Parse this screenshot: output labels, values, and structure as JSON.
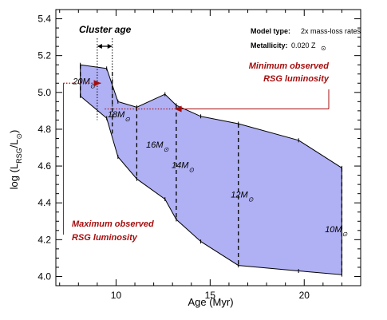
{
  "chart_data": {
    "type": "area",
    "xlabel_parts": [
      "Age (Myr)"
    ],
    "ylabel_parts": [
      "log (L",
      "RSG",
      "/L",
      "⊙",
      ")"
    ],
    "xlim": [
      6.8,
      23.0
    ],
    "ylim": [
      3.95,
      5.45
    ],
    "xticks": [
      10,
      15,
      20
    ],
    "yticks": [
      4.0,
      4.2,
      4.4,
      4.6,
      4.8,
      5.0,
      5.2,
      5.4
    ],
    "ytick_labels": [
      "4.0",
      "4.2",
      "4.4",
      "4.6",
      "4.8",
      "5.0",
      "5.2",
      "5.4"
    ],
    "fill_color": "#b0b0f5",
    "stroke_color": "#000000",
    "annotation_color": "#a50d0d",
    "upper_boundary": [
      {
        "x": 8.1,
        "y": 5.15
      },
      {
        "x": 9.5,
        "y": 5.13
      },
      {
        "x": 10.1,
        "y": 4.95
      },
      {
        "x": 11.1,
        "y": 4.92
      },
      {
        "x": 12.6,
        "y": 4.99
      },
      {
        "x": 13.2,
        "y": 4.93
      },
      {
        "x": 14.5,
        "y": 4.87
      },
      {
        "x": 16.5,
        "y": 4.83
      },
      {
        "x": 19.7,
        "y": 4.74
      },
      {
        "x": 22.0,
        "y": 4.59
      }
    ],
    "lower_boundary": [
      {
        "x": 22.0,
        "y": 4.01
      },
      {
        "x": 19.7,
        "y": 4.03
      },
      {
        "x": 16.5,
        "y": 4.06
      },
      {
        "x": 14.5,
        "y": 4.19
      },
      {
        "x": 13.2,
        "y": 4.31
      },
      {
        "x": 12.6,
        "y": 4.42
      },
      {
        "x": 11.1,
        "y": 4.53
      },
      {
        "x": 10.1,
        "y": 4.65
      },
      {
        "x": 9.5,
        "y": 4.86
      },
      {
        "x": 8.1,
        "y": 4.98
      }
    ],
    "mass_tracks": [
      {
        "label": "20M",
        "x": 8.1,
        "y_low": 4.98,
        "y_high": 5.15,
        "label_x": 7.7,
        "label_y": 5.045
      },
      {
        "label": "18M",
        "x": 9.8,
        "y_low": 4.77,
        "y_high": 5.11,
        "label_x": 9.55,
        "label_y": 4.865
      },
      {
        "label": "16M",
        "x": 11.1,
        "y_low": 4.53,
        "y_high": 4.92,
        "label_x": 11.6,
        "label_y": 4.7
      },
      {
        "label": "14M",
        "x": 13.2,
        "y_low": 4.31,
        "y_high": 4.93,
        "label_x": 12.95,
        "label_y": 4.59
      },
      {
        "label": "12M",
        "x": 16.5,
        "y_low": 4.06,
        "y_high": 4.83,
        "label_x": 16.1,
        "label_y": 4.43
      },
      {
        "label": "10M",
        "x": 22.0,
        "y_low": 4.01,
        "y_high": 4.59,
        "label_x": 21.1,
        "label_y": 4.24
      }
    ],
    "sun_symbol": "⊙",
    "model_type_label": "Model type:",
    "model_type_value": "2x mass-loss rates",
    "metallicity_label": "Metallicity:",
    "metallicity_value": "0.020 Z",
    "cluster_age_label": "Cluster age",
    "cluster_age_range": [
      9.0,
      9.8
    ],
    "min_obs_label_line1": "Minimum observed",
    "min_obs_label_line2": "RSG luminosity",
    "min_obs_luminosity": 4.91,
    "max_obs_label_line1": "Maximum observed",
    "max_obs_label_line2": "RSG luminosity",
    "max_obs_luminosity": 5.05
  }
}
